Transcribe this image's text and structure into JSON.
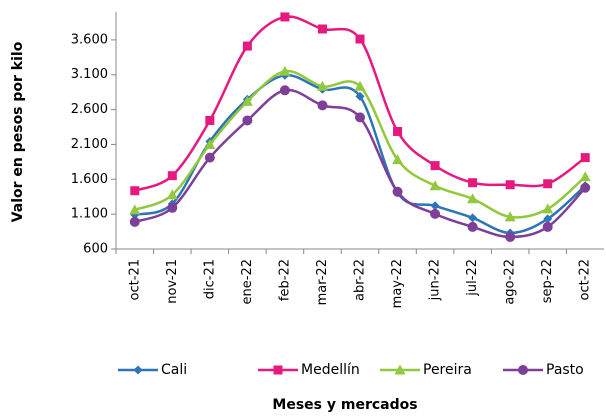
{
  "chart_data": {
    "type": "line",
    "y_label": "Valor en pesos por kilo",
    "x_label": "Meses  y mercados",
    "categories": [
      "oct-21",
      "nov-21",
      "dic-21",
      "ene-22",
      "feb-22",
      "mar-22",
      "abr-22",
      "may-22",
      "jun-22",
      "jul-22",
      "ago-22",
      "sep-22",
      "oct-22"
    ],
    "series": [
      {
        "name": "Cali",
        "color": "#2e75b6",
        "values": [
          1090,
          1248,
          2142,
          2747,
          3093,
          2891,
          2790,
          1407,
          1220,
          1047,
          830,
          1032,
          1508
        ]
      },
      {
        "name": "Medellín",
        "color": "#e6197f",
        "values": [
          1436,
          1652,
          2444,
          3511,
          3929,
          3756,
          3612,
          2286,
          1796,
          1551,
          1522,
          1536,
          1911
        ]
      },
      {
        "name": "Pereira",
        "color": "#92c83e",
        "values": [
          1162,
          1378,
          2099,
          2718,
          3150,
          2934,
          2934,
          1882,
          1508,
          1320,
          1061,
          1176,
          1637
        ]
      },
      {
        "name": "Pasto",
        "color": "#7d3f98",
        "values": [
          989,
          1191,
          1911,
          2444,
          2877,
          2661,
          2488,
          1421,
          1104,
          917,
          773,
          917,
          1479
        ]
      }
    ],
    "ylim": [
      600,
      4000
    ],
    "yticks": [
      600,
      {
        "value": 1100,
        "label": "1.100"
      },
      {
        "value": 1600,
        "label": "1.600"
      },
      {
        "value": 2100,
        "label": "2.100"
      },
      {
        "value": 2600,
        "label": "2.600"
      },
      {
        "value": 3100,
        "label": "3.100"
      },
      {
        "value": 3600,
        "label": "3.600"
      }
    ]
  }
}
